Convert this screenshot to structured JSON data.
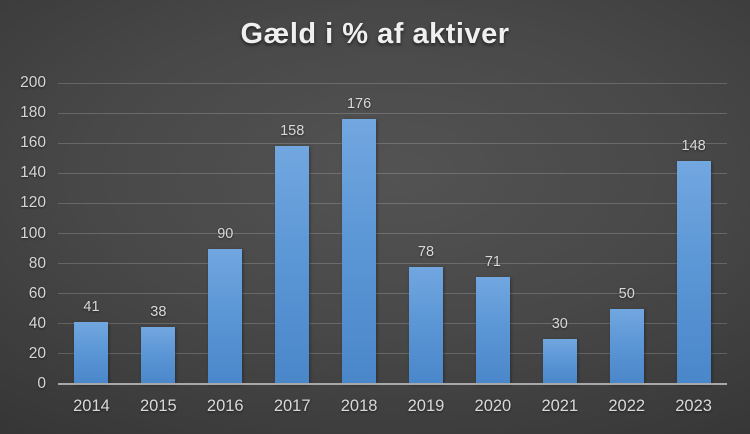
{
  "title": "Gæld i % af aktiver",
  "chart_data": {
    "type": "bar",
    "title": "Gæld i % af aktiver",
    "categories": [
      "2014",
      "2015",
      "2016",
      "2017",
      "2018",
      "2019",
      "2020",
      "2021",
      "2022",
      "2023"
    ],
    "values": [
      41,
      38,
      90,
      158,
      176,
      78,
      71,
      30,
      50,
      148
    ],
    "xlabel": "",
    "ylabel": "",
    "ylim": [
      0,
      200
    ],
    "ytick_step": 20,
    "yticks": [
      0,
      20,
      40,
      60,
      80,
      100,
      120,
      140,
      160,
      180,
      200
    ],
    "grid": true,
    "legend": "none",
    "data_labels": true,
    "colors": {
      "bar_gradient_top": "#72A7E0",
      "bar_gradient_bottom": "#4A87CA",
      "background_center": "#535353",
      "background_edge": "#262626",
      "gridline": "rgba(255,255,255,0.18)",
      "axis_line": "#A8A8A8",
      "tick_label": "#D6D6D6",
      "data_label": "#D9D9D9",
      "title": "#F0F0F0"
    }
  }
}
